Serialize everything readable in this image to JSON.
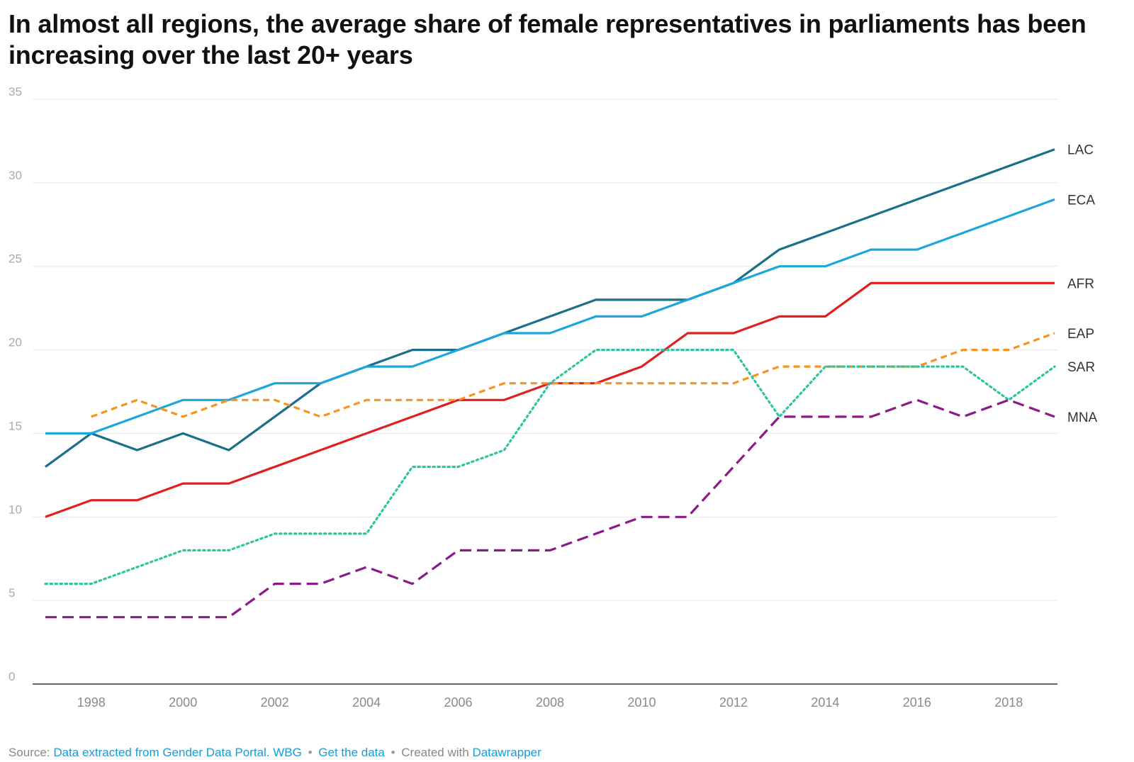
{
  "chart_data": {
    "type": "line",
    "title": "In almost all regions, the average share of female representatives in parliaments has been increasing over the last 20+ years",
    "xlabel": "",
    "ylabel": "",
    "xlim": [
      1997,
      2019
    ],
    "ylim": [
      0,
      35
    ],
    "y_ticks": [
      0,
      5,
      10,
      15,
      20,
      25,
      30,
      35
    ],
    "x_ticks": [
      1998,
      2000,
      2002,
      2004,
      2006,
      2008,
      2010,
      2012,
      2014,
      2016,
      2018
    ],
    "grid": true,
    "legend": "direct labels at line ends (right)",
    "x": [
      1997,
      1998,
      1999,
      2000,
      2001,
      2002,
      2003,
      2004,
      2005,
      2006,
      2007,
      2008,
      2009,
      2010,
      2011,
      2012,
      2013,
      2014,
      2015,
      2016,
      2017,
      2018,
      2019
    ],
    "series": [
      {
        "name": "LAC",
        "color": "#1b6f8a",
        "style": "solid",
        "values": [
          13,
          15,
          14,
          15,
          14,
          16,
          18,
          19,
          20,
          20,
          21,
          22,
          23,
          23,
          23,
          24,
          26,
          27,
          28,
          29,
          30,
          31,
          32
        ]
      },
      {
        "name": "ECA",
        "color": "#1ba7dc",
        "style": "solid",
        "values": [
          15,
          15,
          16,
          17,
          17,
          18,
          18,
          19,
          19,
          20,
          21,
          21,
          22,
          22,
          23,
          24,
          25,
          25,
          26,
          26,
          27,
          28,
          29
        ]
      },
      {
        "name": "AFR",
        "color": "#e01f1f",
        "style": "solid",
        "values": [
          10,
          11,
          11,
          12,
          12,
          13,
          14,
          15,
          16,
          17,
          17,
          18,
          18,
          19,
          21,
          21,
          22,
          22,
          24,
          24,
          24,
          24,
          24
        ]
      },
      {
        "name": "EAP",
        "color": "#f7941d",
        "style": "dashed",
        "values": [
          null,
          16,
          17,
          16,
          17,
          17,
          16,
          17,
          17,
          17,
          18,
          18,
          18,
          18,
          18,
          18,
          19,
          19,
          19,
          19,
          20,
          20,
          21
        ]
      },
      {
        "name": "SAR",
        "color": "#2ec4a0",
        "style": "dotted",
        "values": [
          6,
          6,
          7,
          8,
          8,
          9,
          9,
          9,
          13,
          13,
          14,
          18,
          20,
          20,
          20,
          20,
          16,
          19,
          19,
          19,
          19,
          17,
          19
        ]
      },
      {
        "name": "MNA",
        "color": "#8b1a89",
        "style": "longdash",
        "values": [
          4,
          4,
          4,
          4,
          4,
          6,
          6,
          7,
          6,
          8,
          8,
          8,
          9,
          10,
          10,
          13,
          16,
          16,
          16,
          17,
          16,
          17,
          16
        ]
      }
    ]
  },
  "footer": {
    "source_label": "Source:",
    "source_link": "Data extracted from Gender Data Portal. WBG",
    "separator": "•",
    "get_data": "Get the data",
    "created_with": "Created with",
    "tool": "Datawrapper"
  }
}
